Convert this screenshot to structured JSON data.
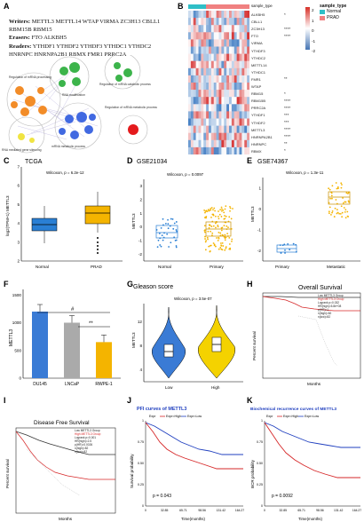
{
  "panel_labels": {
    "A": "A",
    "B": "B",
    "C": "C",
    "D": "D",
    "E": "E",
    "F": "F",
    "G": "G",
    "H": "H",
    "I": "I",
    "J": "J",
    "K": "K"
  },
  "panelA": {
    "writers_label": "Writers:",
    "writers": "METTL3 METTL14 WTAP VIRMA ZC3H13 CBLL1 RBM15B RBM15",
    "erasers_label": "Erasers:",
    "erasers": "FTO ALKBH5",
    "readers_label": "Readers:",
    "readers": "YTHDF1 YTHDF2 YTHDF3 YTHDC1 YTHDC2 HNRNPC HNRNPA2B1 RBMX FMR1 PRRC2A",
    "network_labels": [
      "Regulation of mRNA processing",
      "RNA modification",
      "Regulation of mRNA catabolic process",
      "Regulation of mRNA metabolic process",
      "mRNA metabolic process",
      "RNA mediated gene silencing"
    ]
  },
  "panelB": {
    "header": "sample_type",
    "legend_title": "sample_type",
    "legend_items": [
      "Normal",
      "PRAD"
    ],
    "legend_colors": [
      "#2fbfc7",
      "#f08080"
    ],
    "scale_ticks": [
      "2",
      "1",
      "0",
      "-1",
      "-2"
    ],
    "genes": [
      "ALKBH5",
      "CBLL1",
      "ZC3H13",
      "FTO",
      "VIRMA",
      "YTHDF3",
      "YTHDC2",
      "METTL14",
      "YTHDC1",
      "FMR1",
      "WTAP",
      "RBM15",
      "RBM15B",
      "PRRC2A",
      "YTHDF1",
      "YTHDF2",
      "METTL3",
      "HNRNPA2B1",
      "HNRNPC",
      "RBMX"
    ],
    "stars": [
      "*",
      "",
      "****",
      "****",
      "",
      "",
      "",
      "",
      "",
      "**",
      "",
      "*",
      "****",
      "****",
      "***",
      "***",
      "****",
      "****",
      "**",
      "*"
    ]
  },
  "chart_data": [
    {
      "id": "C",
      "type": "box",
      "title": "TCGA",
      "stat": "Wilcoxon, p = 6.2e-12",
      "ylabel": "log2(TPM+1) METTL3",
      "categories": [
        "Normal",
        "PRAD"
      ],
      "colors": [
        "#2a7fd4",
        "#f4b400"
      ],
      "median": [
        4.6,
        5.0
      ],
      "q1": [
        4.3,
        4.6
      ],
      "q3": [
        4.9,
        5.4
      ],
      "min": [
        3.7,
        3.7
      ],
      "max": [
        5.5,
        6.4
      ],
      "ylim": [
        2,
        7
      ],
      "yticks": [
        2,
        3,
        4,
        5,
        6,
        7
      ]
    },
    {
      "id": "D",
      "type": "box",
      "title": "GSE21034",
      "stat": "Wilcoxon, p = 0.0097",
      "ylabel": "METTL3",
      "categories": [
        "Normal",
        "Primary"
      ],
      "colors": [
        "#2a7fd4",
        "#f4b400"
      ],
      "yticks": [
        -2,
        -1,
        0,
        1,
        2,
        3
      ],
      "ylim": [
        -2.5,
        3.5
      ]
    },
    {
      "id": "E",
      "type": "box",
      "title": "GSE74367",
      "stat": "Wilcoxon, p = 1.3e-11",
      "ylabel": "METTL3",
      "categories": [
        "Primary",
        "Metastatic"
      ],
      "colors": [
        "#2a7fd4",
        "#f4b400"
      ],
      "yticks": [
        -2,
        -1,
        0,
        1
      ],
      "ylim": [
        -2.5,
        1.5
      ]
    },
    {
      "id": "F",
      "type": "bar",
      "ylabel": "METTL3",
      "categories": [
        "DU145",
        "LNCaP",
        "RWPE-1"
      ],
      "values": [
        1200,
        1000,
        650
      ],
      "colors": [
        "#3a7bd5",
        "#aaaaaa",
        "#f4b400"
      ],
      "annotations": [
        "#",
        "**"
      ],
      "yticks": [
        0,
        500,
        1000,
        1500
      ],
      "ylim": [
        0,
        1600
      ]
    },
    {
      "id": "G",
      "type": "violin",
      "title": "Gleason score",
      "stat": "Wilcoxon, p = 3.5e-07",
      "ylabel": "METTL3",
      "categories": [
        "Low",
        "High"
      ],
      "colors": [
        "#3a7bd5",
        "#f4d200"
      ],
      "yticks": [
        4,
        8,
        12
      ],
      "ylim": [
        2,
        15
      ]
    },
    {
      "id": "H",
      "type": "line",
      "title": "Overall Survival",
      "xlabel": "Months",
      "ylabel": "Percent survival",
      "legend": [
        "Low METTL3 Group",
        "High METTL3 Group"
      ],
      "stats": [
        "Logrank p=0.032",
        "HR(high)=5.8e+08",
        "p(HR)=1",
        "n(high)=82",
        "n(low)=82"
      ]
    },
    {
      "id": "I",
      "type": "line",
      "title": "Disease Free Survival",
      "xlabel": "Months",
      "ylabel": "Percent survival",
      "legend": [
        "Low METTL3 Group",
        "High METTL3 Group"
      ],
      "stats": [
        "Logrank p=0.001",
        "HR(high)=2.5",
        "p(HR)=0.0026",
        "n(high)=82",
        "n(low)=82"
      ]
    },
    {
      "id": "J",
      "type": "line",
      "title": "PFI curves of METTL3",
      "xlabel": "Time(months)",
      "ylabel": "Survival probability",
      "legend": [
        "Expr",
        "Expr=High",
        "Expr=Low"
      ],
      "stat": "p = 0.043",
      "xticks": [
        "0",
        "32.85",
        "65.71",
        "98.56",
        "131.42",
        "164.27"
      ],
      "yticks": [
        "0",
        "0.25",
        "0.50",
        "0.75",
        "1"
      ],
      "series": [
        {
          "name": "Expr=High",
          "color": "#d62728"
        },
        {
          "name": "Expr=Low",
          "color": "#1f3fbf"
        }
      ]
    },
    {
      "id": "K",
      "type": "line",
      "title": "Biochemical recurrence curves of METTL3",
      "xlabel": "Time(months)",
      "ylabel": "BCR probability",
      "legend": [
        "Expr",
        "Expr=High",
        "Expr=Low"
      ],
      "stat": "p = 0.0092",
      "xticks": [
        "0",
        "32.85",
        "65.71",
        "98.56",
        "131.42",
        "164.27"
      ],
      "yticks": [
        "0",
        "0.25",
        "0.50",
        "0.75",
        "1"
      ],
      "series": [
        {
          "name": "Expr=High",
          "color": "#d62728"
        },
        {
          "name": "Expr=Low",
          "color": "#1f3fbf"
        }
      ]
    }
  ]
}
